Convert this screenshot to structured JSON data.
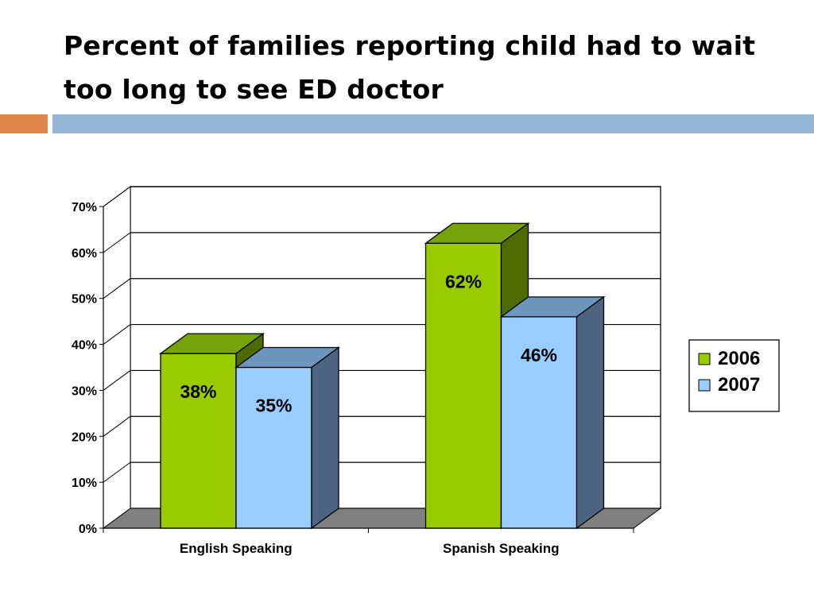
{
  "slide": {
    "title_line1": "Percent of families reporting child had to wait",
    "title_line2": "too long to see ED doctor"
  },
  "colors": {
    "accent_orange": "#E0874B",
    "accent_blue": "#93B6D4",
    "series_2006_front": "#99CC00",
    "series_2006_top": "#76A30A",
    "series_2006_side": "#4E6B00",
    "series_2007_front": "#99CCFF",
    "series_2007_top": "#6D95BE",
    "series_2007_side": "#4D6582",
    "floor": "#808080"
  },
  "chart_data": {
    "type": "bar",
    "style": "3d-clustered-column",
    "title": "",
    "xlabel": "",
    "ylabel": "",
    "categories": [
      "English Speaking",
      "Spanish Speaking"
    ],
    "series": [
      {
        "name": "2006",
        "values": [
          38,
          62
        ],
        "labels": [
          "38%",
          "62%"
        ]
      },
      {
        "name": "2007",
        "values": [
          35,
          46
        ],
        "labels": [
          "35%",
          "46%"
        ]
      }
    ],
    "ylim": [
      0,
      70
    ],
    "yticks": [
      "0%",
      "10%",
      "20%",
      "30%",
      "40%",
      "50%",
      "60%",
      "70%"
    ],
    "ytick_values": [
      0,
      10,
      20,
      30,
      40,
      50,
      60,
      70
    ],
    "grid": true,
    "legend": "right"
  }
}
